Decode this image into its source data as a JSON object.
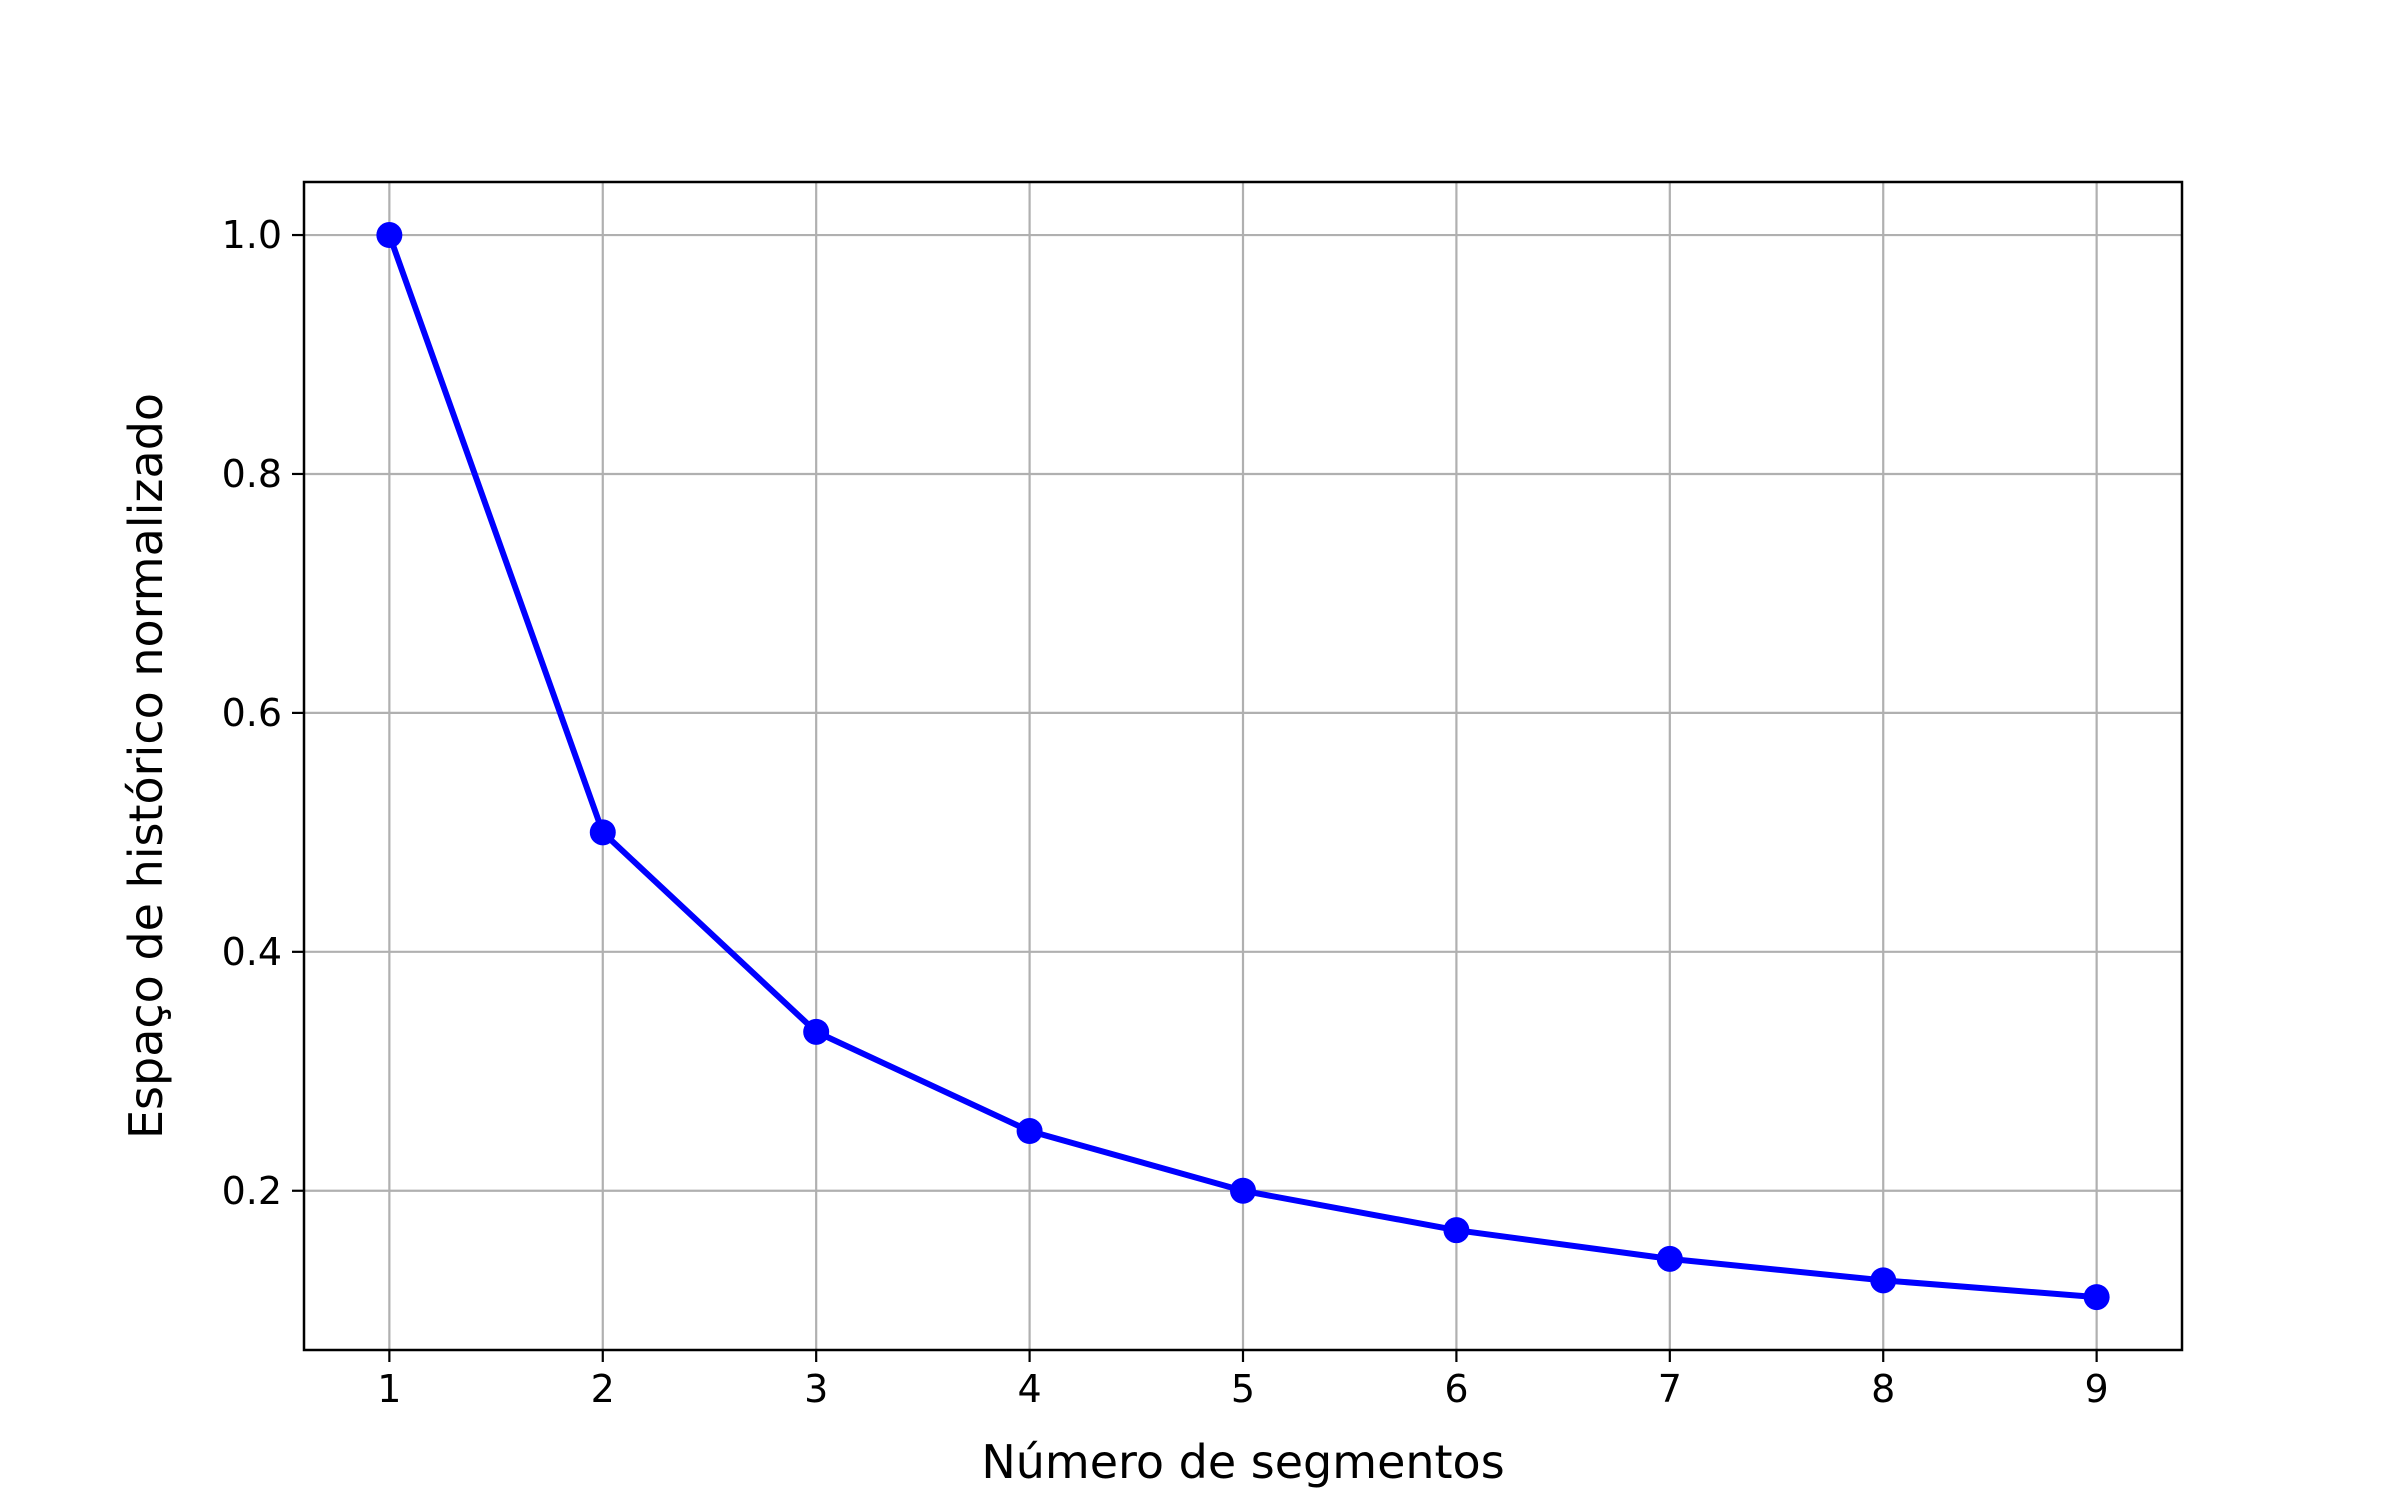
{
  "chart_data": {
    "type": "line",
    "title": "",
    "xlabel": "Número de segmentos",
    "ylabel": "Espaço de histórico normalizado",
    "x": [
      1,
      2,
      3,
      4,
      5,
      6,
      7,
      8,
      9
    ],
    "series": [
      {
        "values": [
          1.0,
          0.5,
          0.333,
          0.25,
          0.2,
          0.167,
          0.143,
          0.125,
          0.111
        ],
        "color": "#0000ff",
        "marker": "circle"
      }
    ],
    "xticks": [
      "1",
      "2",
      "3",
      "4",
      "5",
      "6",
      "7",
      "8",
      "9"
    ],
    "yticks": [
      "0.2",
      "0.4",
      "0.6",
      "0.8",
      "1.0"
    ],
    "xlim": [
      0.6,
      9.4
    ],
    "ylim": [
      0.0667,
      1.0444
    ],
    "grid": true,
    "colors": {
      "grid": "#b0b0b0",
      "axes": "#000000",
      "line": "#0000ff"
    }
  }
}
